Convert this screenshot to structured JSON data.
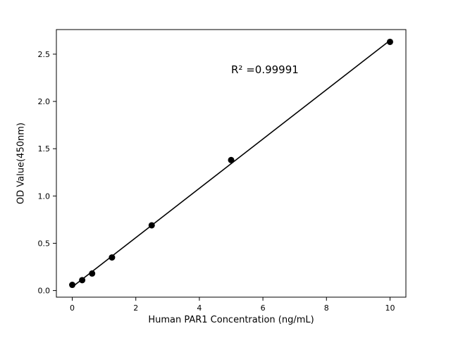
{
  "chart_data": {
    "type": "scatter",
    "title": "",
    "xlabel": "Human PAR1 Concentration (ng/mL)",
    "ylabel": "OD Value(450nm)",
    "x": [
      0,
      0.3125,
      0.625,
      1.25,
      2.5,
      5,
      10
    ],
    "y": [
      0.06,
      0.11,
      0.18,
      0.35,
      0.69,
      1.38,
      2.63
    ],
    "xlim": [
      -0.5,
      10.5
    ],
    "ylim": [
      -0.07,
      2.76
    ],
    "xticks": [
      0,
      2,
      4,
      6,
      8,
      10
    ],
    "xtick_labels": [
      "0",
      "2",
      "4",
      "6",
      "8",
      "10"
    ],
    "yticks": [
      0.0,
      0.5,
      1.0,
      1.5,
      2.0,
      2.5
    ],
    "ytick_labels": [
      "0.0",
      "0.5",
      "1.0",
      "1.5",
      "2.0",
      "2.5"
    ],
    "annotation": {
      "text": "R² =0.99991",
      "x": 5.0,
      "y": 2.35
    },
    "fit_line": true,
    "grid": false,
    "legend": null,
    "marker_color": "#000000",
    "line_color": "#000000",
    "axis_color": "#000000",
    "background_color": "#ffffff"
  }
}
